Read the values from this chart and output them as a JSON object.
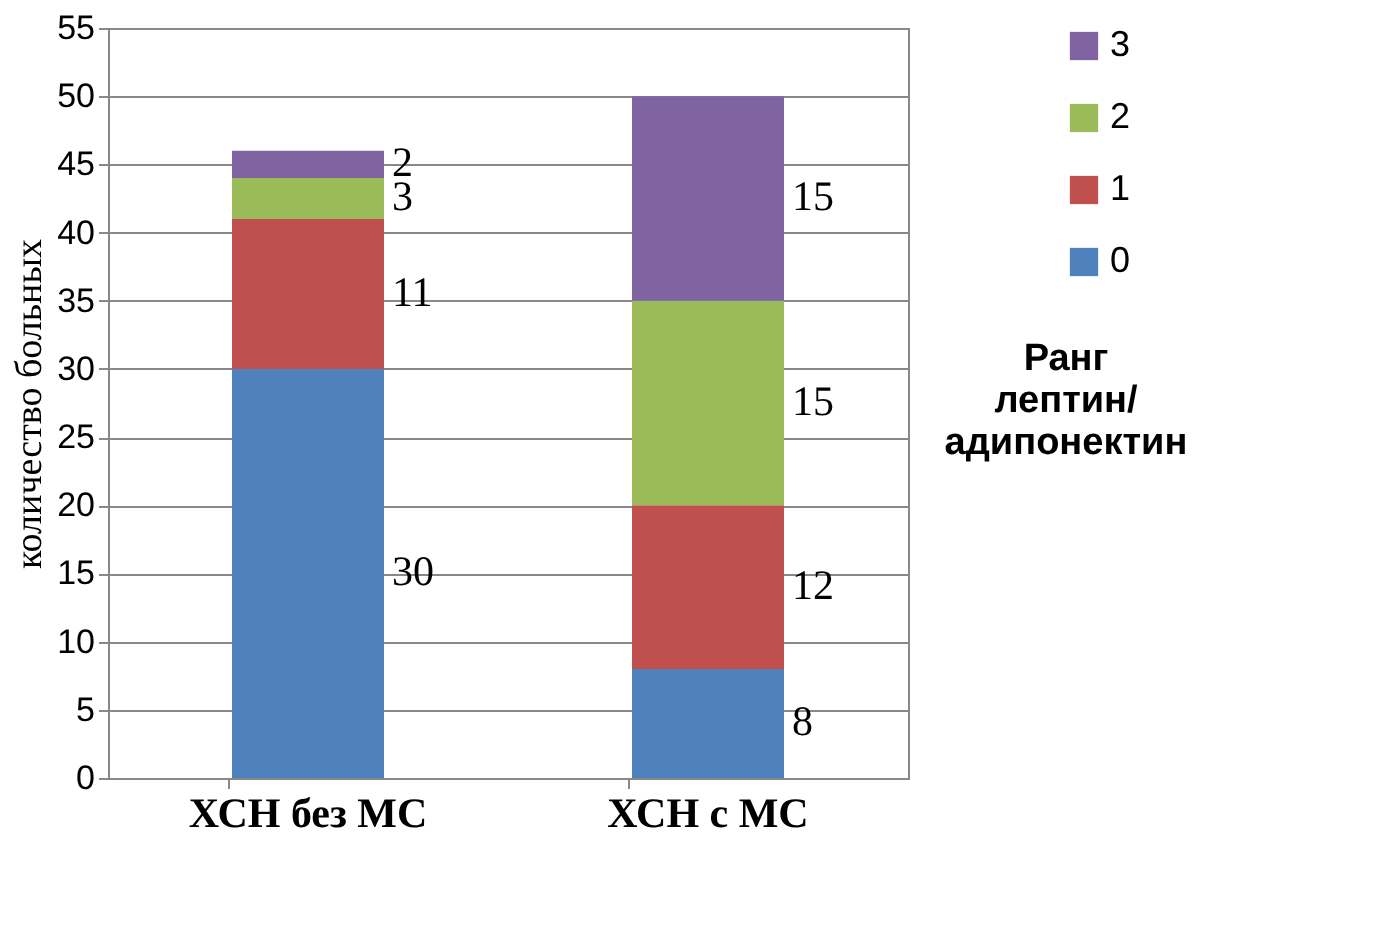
{
  "chart_data": {
    "type": "bar",
    "stacked": true,
    "categories": [
      "ХСН без МС",
      "ХСН с МС"
    ],
    "series": [
      {
        "name": "0",
        "color": "#4f81bd",
        "values": [
          30,
          8
        ]
      },
      {
        "name": "1",
        "color": "#c0504d",
        "values": [
          11,
          12
        ]
      },
      {
        "name": "2",
        "color": "#9bbb59",
        "values": [
          3,
          15
        ]
      },
      {
        "name": "3",
        "color": "#8064a2",
        "values": [
          2,
          15
        ]
      }
    ],
    "ylabel": "количество  больных",
    "legend_title": "Ранг\nлептин/\nадипонектин",
    "ylim": [
      0,
      55
    ],
    "yticks": [
      0,
      5,
      10,
      15,
      20,
      25,
      30,
      35,
      40,
      45,
      50,
      55
    ],
    "grid": "y",
    "legend": "right",
    "data_labels": true
  }
}
